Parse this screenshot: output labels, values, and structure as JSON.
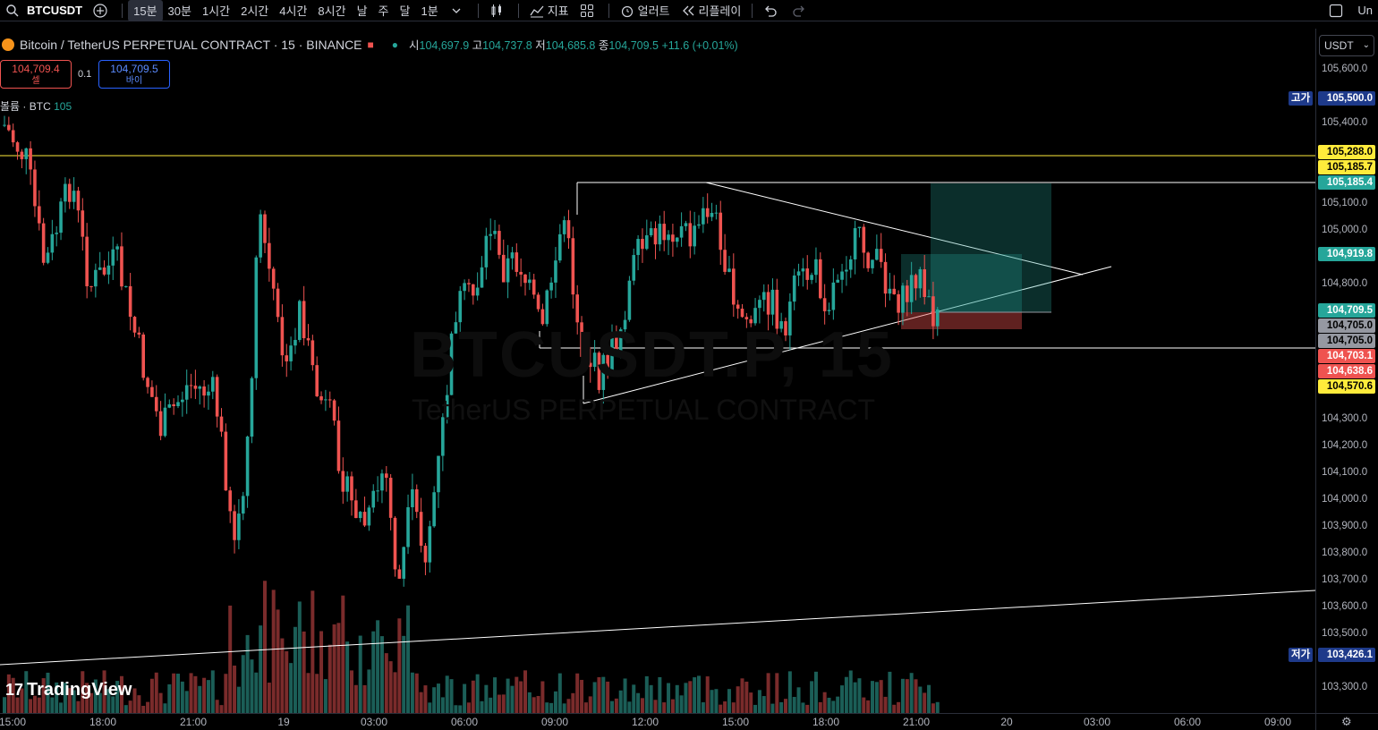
{
  "toolbar": {
    "symbol": "BTCUSDT",
    "intervals": [
      "15분",
      "30분",
      "1시간",
      "2시간",
      "4시간",
      "8시간",
      "날",
      "주",
      "달",
      "1분"
    ],
    "active_interval": "15분",
    "indicators_label": "지표",
    "alert_label": "얼러트",
    "replay_label": "리플레이",
    "right_text": "Un"
  },
  "legend": {
    "title": "Bitcoin / TetherUS PERPETUAL CONTRACT · 15 · BINANCE",
    "open_label": "시",
    "open": "104,697.9",
    "high_label": "고",
    "high": "104,737.8",
    "low_label": "저",
    "low": "104,685.8",
    "close_label": "종",
    "close": "104,709.5",
    "change": "+11.6 (+0.01%)"
  },
  "trade": {
    "sell_price": "104,709.4",
    "sell_label": "셀",
    "quantity": "0.1",
    "buy_price": "104,709.5",
    "buy_label": "바이"
  },
  "volume": {
    "label": "볼륨 · BTC",
    "value": "105"
  },
  "watermark": {
    "line1": "BTCUSDT.P, 15",
    "line2": "TetherUS PERPETUAL CONTRACT"
  },
  "branding": "TradingView",
  "price_axis": {
    "currency": "USDT",
    "ticks": [
      "105,600.0",
      "105,400.0",
      "105,100.0",
      "105,000.0",
      "104,800.0",
      "104,300.0",
      "104,200.0",
      "104,100.0",
      "104,000.0",
      "103,900.0",
      "103,800.0",
      "103,700.0",
      "103,600.0",
      "103,500.0",
      "103,300.0"
    ],
    "high_label": "고가",
    "high_value": "105,500.0",
    "low_label": "저가",
    "low_value": "103,426.1",
    "tags": [
      {
        "value": "105,288.0",
        "bg": "#ffeb3b",
        "color": "#000000"
      },
      {
        "value": "105,185.7",
        "bg": "#ffeb3b",
        "color": "#000000"
      },
      {
        "value": "105,185.4",
        "bg": "#26a69a",
        "color": "#ffffff"
      },
      {
        "value": "104,919.8",
        "bg": "#26a69a",
        "color": "#ffffff"
      },
      {
        "value": "104,709.5",
        "bg": "#26a69a",
        "color": "#ffffff"
      },
      {
        "value": "104,705.0",
        "bg": "#9598a1",
        "color": "#000000"
      },
      {
        "value": "104,705.0",
        "bg": "#9598a1",
        "color": "#000000"
      },
      {
        "value": "104,703.1",
        "bg": "#ef5350",
        "color": "#ffffff"
      },
      {
        "value": "104,638.6",
        "bg": "#ef5350",
        "color": "#ffffff"
      },
      {
        "value": "104,570.6",
        "bg": "#ffeb3b",
        "color": "#000000"
      }
    ]
  },
  "time_axis": [
    "15:00",
    "18:00",
    "21:00",
    "19",
    "03:00",
    "06:00",
    "09:00",
    "12:00",
    "15:00",
    "18:00",
    "21:00",
    "20",
    "03:00",
    "06:00",
    "09:00"
  ],
  "colors": {
    "up": "#26a69a",
    "down": "#ef5350",
    "background": "#000000"
  }
}
